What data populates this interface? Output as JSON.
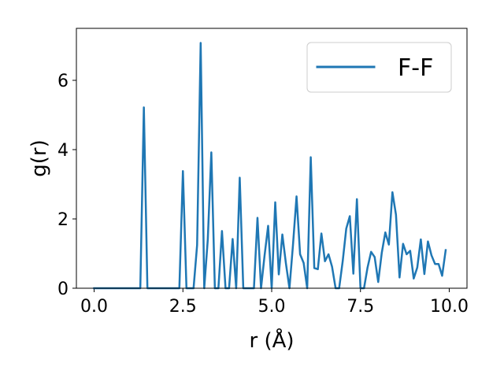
{
  "chart_data": {
    "type": "line",
    "title": "",
    "xlabel": "r (Å)",
    "ylabel": "g(r)",
    "xlim": [
      -0.5,
      10.5
    ],
    "ylim": [
      0,
      7.5
    ],
    "xticks": [
      0.0,
      2.5,
      5.0,
      7.5,
      10.0
    ],
    "xtick_labels": [
      "0.0",
      "2.5",
      "5.0",
      "7.5",
      "10.0"
    ],
    "yticks": [
      0,
      2,
      4,
      6
    ],
    "ytick_labels": [
      "0",
      "2",
      "4",
      "6"
    ],
    "grid": false,
    "legend_position": "upper right",
    "colors": {
      "F-F": "#1f77b4"
    },
    "series": [
      {
        "name": "F-F",
        "x": [
          0.0,
          0.1,
          0.2,
          0.3,
          0.4,
          0.5,
          0.6,
          0.7,
          0.8,
          0.9,
          1.0,
          1.1,
          1.2,
          1.3,
          1.4,
          1.5,
          1.6,
          1.7,
          1.8,
          1.9,
          2.0,
          2.1,
          2.2,
          2.3,
          2.4,
          2.5,
          2.6,
          2.7,
          2.8,
          2.9,
          3.0,
          3.1,
          3.2,
          3.3,
          3.4,
          3.5,
          3.6,
          3.7,
          3.8,
          3.9,
          4.0,
          4.1,
          4.2,
          4.3,
          4.4,
          4.5,
          4.6,
          4.7,
          4.8,
          4.9,
          5.0,
          5.1,
          5.2,
          5.3,
          5.4,
          5.5,
          5.6,
          5.7,
          5.8,
          5.9,
          6.0,
          6.1,
          6.2,
          6.3,
          6.4,
          6.5,
          6.6,
          6.7,
          6.8,
          6.9,
          7.0,
          7.1,
          7.2,
          7.3,
          7.4,
          7.5,
          7.6,
          7.7,
          7.8,
          7.9,
          8.0,
          8.1,
          8.2,
          8.3,
          8.4,
          8.5,
          8.6,
          8.7,
          8.8,
          8.9,
          9.0,
          9.1,
          9.2,
          9.3,
          9.4,
          9.5,
          9.6,
          9.7,
          9.8,
          9.9
        ],
        "values": [
          0,
          0,
          0,
          0,
          0,
          0,
          0,
          0,
          0,
          0,
          0,
          0,
          0,
          0,
          5.22,
          0,
          0,
          0,
          0,
          0,
          0,
          0,
          0,
          0,
          0,
          3.38,
          0,
          0,
          0,
          1.25,
          7.08,
          0,
          1.4,
          3.92,
          0,
          0,
          1.65,
          0,
          0,
          1.42,
          0,
          3.19,
          0,
          0,
          0,
          0,
          2.03,
          0,
          0.95,
          1.8,
          0,
          2.48,
          0.4,
          1.55,
          0.72,
          0,
          1.25,
          2.65,
          0.98,
          0.73,
          0,
          3.78,
          0.58,
          0.55,
          1.58,
          0.78,
          0.98,
          0.62,
          0,
          0,
          0.78,
          1.72,
          2.08,
          0.42,
          2.57,
          0,
          0,
          0.6,
          1.05,
          0.9,
          0.18,
          1.02,
          1.61,
          1.26,
          2.77,
          2.12,
          0.31,
          1.28,
          0.98,
          1.08,
          0.28,
          0.6,
          1.41,
          0.41,
          1.35,
          0.95,
          0.7,
          0.7,
          0.36,
          1.1
        ]
      }
    ]
  }
}
